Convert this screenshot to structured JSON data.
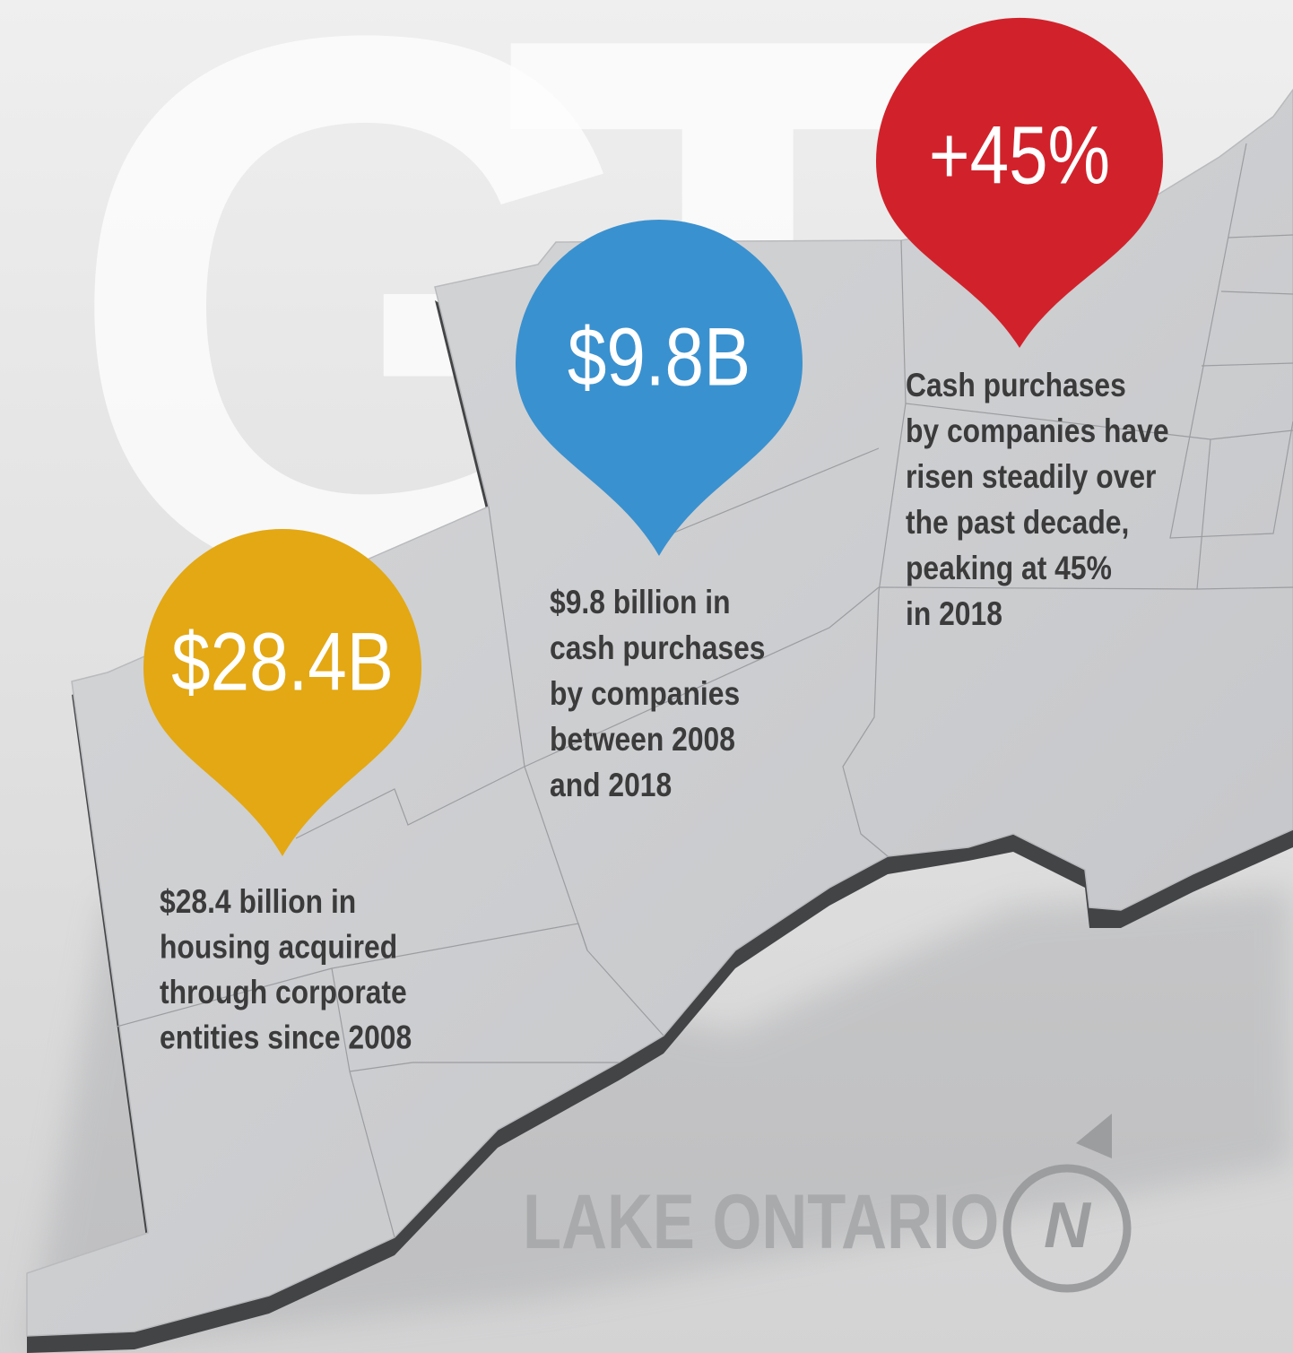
{
  "background_letters": [
    "G",
    "T"
  ],
  "callouts": [
    {
      "value": "$28.4B",
      "lines": [
        "$28.4 billion in",
        "housing acquired",
        "through corporate",
        "entities since 2008"
      ]
    },
    {
      "value": "$9.8B",
      "lines": [
        "$9.8 billion in",
        "cash purchases",
        "by companies",
        "between 2008",
        "and 2018"
      ]
    },
    {
      "value": "+45%",
      "lines": [
        "Cash purchases",
        "by companies have",
        "risen steadily over",
        "the past decade,",
        "peaking at 45%",
        "in 2018"
      ]
    }
  ],
  "lake_label": "LAKE ONTARIO",
  "compass_label": "N"
}
